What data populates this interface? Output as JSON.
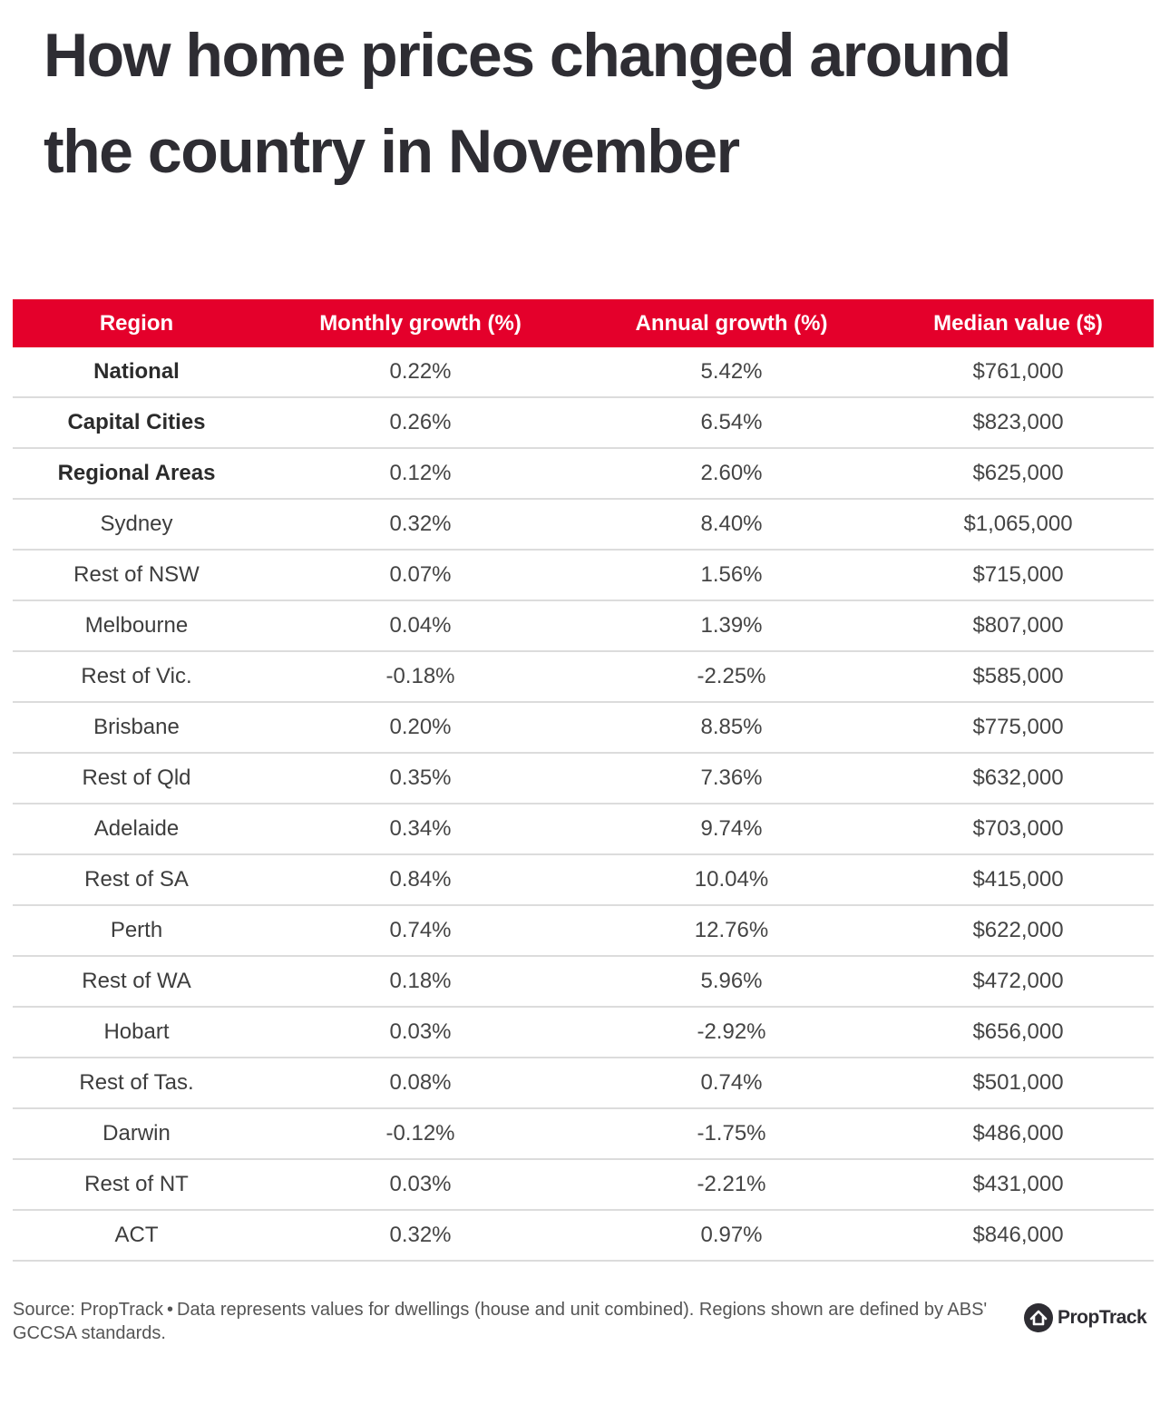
{
  "title": "How home prices changed around the country in November",
  "chart_data": {
    "type": "table",
    "columns": [
      "Region",
      "Monthly growth (%)",
      "Annual growth (%)",
      "Median value ($)"
    ],
    "rows": [
      {
        "region": "National",
        "monthly": "0.22%",
        "annual": "5.42%",
        "median": "$761,000",
        "bold": true
      },
      {
        "region": "Capital Cities",
        "monthly": "0.26%",
        "annual": "6.54%",
        "median": "$823,000",
        "bold": true
      },
      {
        "region": "Regional Areas",
        "monthly": "0.12%",
        "annual": "2.60%",
        "median": "$625,000",
        "bold": true
      },
      {
        "region": "Sydney",
        "monthly": "0.32%",
        "annual": "8.40%",
        "median": "$1,065,000",
        "bold": false
      },
      {
        "region": "Rest of NSW",
        "monthly": "0.07%",
        "annual": "1.56%",
        "median": "$715,000",
        "bold": false
      },
      {
        "region": "Melbourne",
        "monthly": "0.04%",
        "annual": "1.39%",
        "median": "$807,000",
        "bold": false
      },
      {
        "region": "Rest of Vic.",
        "monthly": "-0.18%",
        "annual": "-2.25%",
        "median": "$585,000",
        "bold": false
      },
      {
        "region": "Brisbane",
        "monthly": "0.20%",
        "annual": "8.85%",
        "median": "$775,000",
        "bold": false
      },
      {
        "region": "Rest of Qld",
        "monthly": "0.35%",
        "annual": "7.36%",
        "median": "$632,000",
        "bold": false
      },
      {
        "region": "Adelaide",
        "monthly": "0.34%",
        "annual": "9.74%",
        "median": "$703,000",
        "bold": false
      },
      {
        "region": "Rest of SA",
        "monthly": "0.84%",
        "annual": "10.04%",
        "median": "$415,000",
        "bold": false
      },
      {
        "region": "Perth",
        "monthly": "0.74%",
        "annual": "12.76%",
        "median": "$622,000",
        "bold": false
      },
      {
        "region": "Rest of WA",
        "monthly": "0.18%",
        "annual": "5.96%",
        "median": "$472,000",
        "bold": false
      },
      {
        "region": "Hobart",
        "monthly": "0.03%",
        "annual": "-2.92%",
        "median": "$656,000",
        "bold": false
      },
      {
        "region": "Rest of Tas.",
        "monthly": "0.08%",
        "annual": "0.74%",
        "median": "$501,000",
        "bold": false
      },
      {
        "region": "Darwin",
        "monthly": "-0.12%",
        "annual": "-1.75%",
        "median": "$486,000",
        "bold": false
      },
      {
        "region": "Rest of NT",
        "monthly": "0.03%",
        "annual": "-2.21%",
        "median": "$431,000",
        "bold": false
      },
      {
        "region": "ACT",
        "monthly": "0.32%",
        "annual": "0.97%",
        "median": "$846,000",
        "bold": false
      }
    ]
  },
  "footer": {
    "source": "Source: PropTrack",
    "separator": "•",
    "note": "Data represents values for dwellings (house and unit combined). Regions shown are defined by ABS' GCCSA standards."
  },
  "logo": {
    "text": "PropTrack",
    "icon": "house-icon"
  },
  "colors": {
    "header_bg": "#e4002b",
    "header_text": "#ffffff",
    "title": "#2e2d33",
    "row_divider": "#dcdcdc"
  }
}
